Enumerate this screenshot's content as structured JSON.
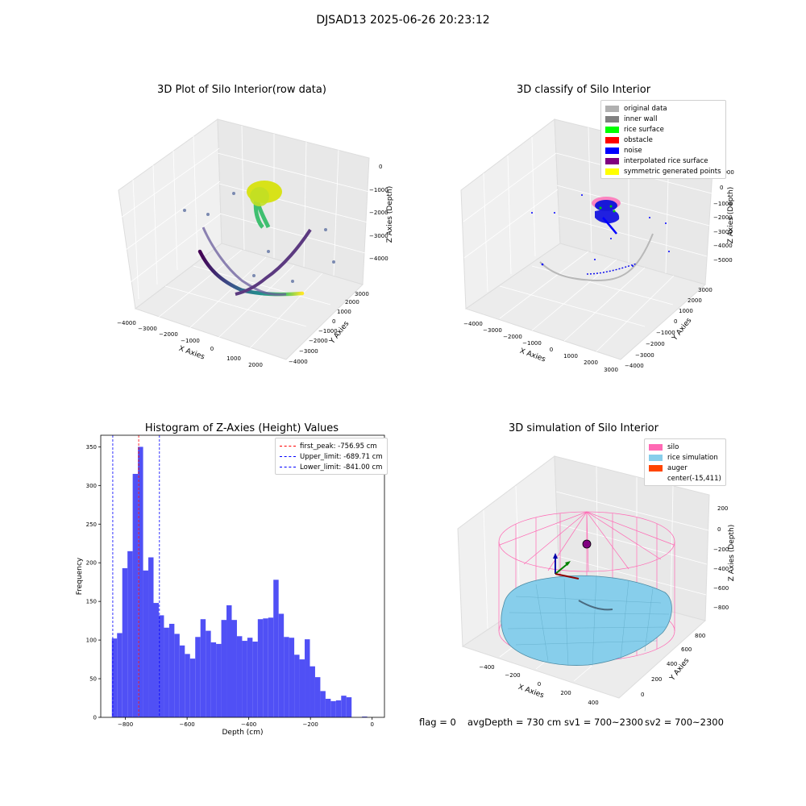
{
  "figure": {
    "suptitle": "DJSAD13 2025-06-26 20:23:12",
    "footer": {
      "flag": "flag = 0",
      "avg_depth": "avgDepth = 730 cm",
      "sv1": "sv1 = 700~2300",
      "sv2": "sv2 = 700~2300"
    }
  },
  "panels": {
    "raw": {
      "title": "3D Plot of Silo Interior(row data)",
      "xlabel": "X Axies",
      "ylabel": "Y Axies",
      "zlabel": "Z Axies (Depth)",
      "xticks": [
        "−4000",
        "−3000",
        "−2000",
        "−1000",
        "0",
        "1000",
        "2000"
      ],
      "yticks": [
        "−4000",
        "−3000",
        "−2000",
        "−1000",
        "0",
        "1000",
        "2000",
        "3000"
      ],
      "zticks": [
        "0",
        "−1000",
        "−2000",
        "−3000",
        "−4000"
      ],
      "colormap": "viridis"
    },
    "classify": {
      "title": "3D classify of Silo Interior",
      "xlabel": "X Axies",
      "ylabel": "Y Axies",
      "zlabel": "Z Axies (Depth)",
      "xticks": [
        "−4000",
        "−3000",
        "−2000",
        "−1000",
        "0",
        "1000",
        "2000",
        "3000"
      ],
      "yticks": [
        "−4000",
        "−3000",
        "−2000",
        "−1000",
        "0",
        "1000",
        "2000",
        "3000"
      ],
      "zticks": [
        "1000",
        "0",
        "−1000",
        "−2000",
        "−3000",
        "−4000",
        "−5000"
      ],
      "legend": [
        {
          "label": "original data",
          "color": "#b0b0b0"
        },
        {
          "label": "inner wall",
          "color": "#808080"
        },
        {
          "label": "rice surface",
          "color": "#00ff00"
        },
        {
          "label": "obstacle",
          "color": "#ff0000"
        },
        {
          "label": "noise",
          "color": "#0000ff"
        },
        {
          "label": "interpolated rice surface",
          "color": "#800080"
        },
        {
          "label": "symmetric generated points",
          "color": "#ffff00"
        }
      ]
    },
    "simulation": {
      "title": "3D simulation of Silo Interior",
      "xlabel": "X Axies",
      "ylabel": "Y Axies",
      "zlabel": "Z Axies (Depth)",
      "xticks": [
        "−400",
        "−200",
        "0",
        "200",
        "400"
      ],
      "yticks": [
        "0",
        "200",
        "400",
        "600",
        "800"
      ],
      "zticks": [
        "200",
        "0",
        "−200",
        "−400",
        "−600",
        "−800"
      ],
      "legend": [
        {
          "label": "silo",
          "color": "#ff69b4"
        },
        {
          "label": "rice simulation",
          "color": "#87ceeb"
        },
        {
          "label": "auger",
          "color": "#ff4500"
        },
        {
          "label": "center(-15,411)",
          "color": ""
        }
      ]
    }
  },
  "chart_data": [
    {
      "type": "bar",
      "title": "Histogram of Z-Axies (Height) Values",
      "xlabel": "Depth (cm)",
      "ylabel": "Frequency",
      "xlim": [
        -880,
        40
      ],
      "ylim": [
        0,
        365
      ],
      "xticks": [
        -800,
        -600,
        -400,
        -200,
        0
      ],
      "yticks": [
        0,
        50,
        100,
        150,
        200,
        250,
        300,
        350
      ],
      "bar_color": "#5050f5",
      "bin_width": 16.9,
      "bin_edges_start": -844,
      "values": [
        102,
        109,
        193,
        215,
        315,
        350,
        190,
        207,
        148,
        132,
        116,
        121,
        108,
        93,
        82,
        76,
        104,
        127,
        112,
        97,
        95,
        126,
        145,
        126,
        105,
        99,
        103,
        98,
        127,
        128,
        129,
        178,
        134,
        104,
        103,
        81,
        75,
        101,
        66,
        52,
        34,
        24,
        21,
        22,
        28,
        26,
        0,
        0,
        1
      ],
      "vlines": [
        {
          "label": "first_peak: -756.95 cm",
          "x": -756.95,
          "color": "#ff0000"
        },
        {
          "label": "Upper_limit: -689.71 cm",
          "x": -689.71,
          "color": "#0000ff"
        },
        {
          "label": "Lower_limit: -841.00 cm",
          "x": -841.0,
          "color": "#0000ff"
        }
      ],
      "legend_position": "top-right"
    }
  ]
}
